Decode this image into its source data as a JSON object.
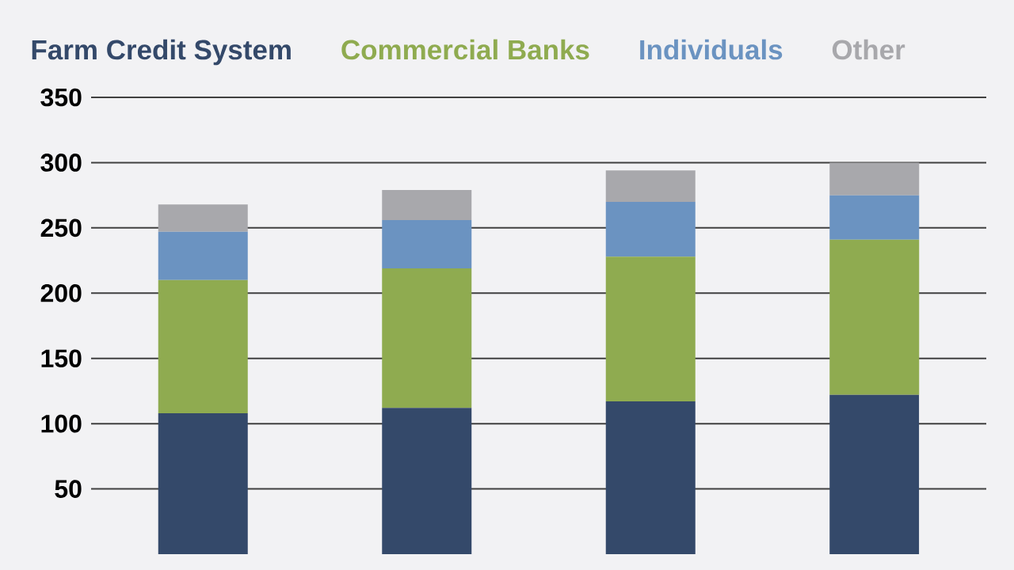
{
  "chart_data": {
    "type": "bar",
    "stacked": true,
    "categories": [
      null,
      null,
      null,
      null
    ],
    "series": [
      {
        "name": "Farm Credit System",
        "color": "#34496a",
        "values": [
          108,
          112,
          117,
          122
        ]
      },
      {
        "name": "Commercial Banks",
        "color": "#8fab50",
        "values": [
          102,
          107,
          111,
          119
        ]
      },
      {
        "name": "Individuals",
        "color": "#6b93c1",
        "values": [
          37,
          37,
          42,
          34
        ]
      },
      {
        "name": "Other",
        "color": "#a8a8ac",
        "values": [
          21,
          23,
          24,
          25
        ]
      }
    ],
    "ylim": [
      0,
      350
    ],
    "yticks": [
      50,
      100,
      150,
      200,
      250,
      300,
      350
    ],
    "grid": "y",
    "legend": "top",
    "tick_labels": "y"
  }
}
